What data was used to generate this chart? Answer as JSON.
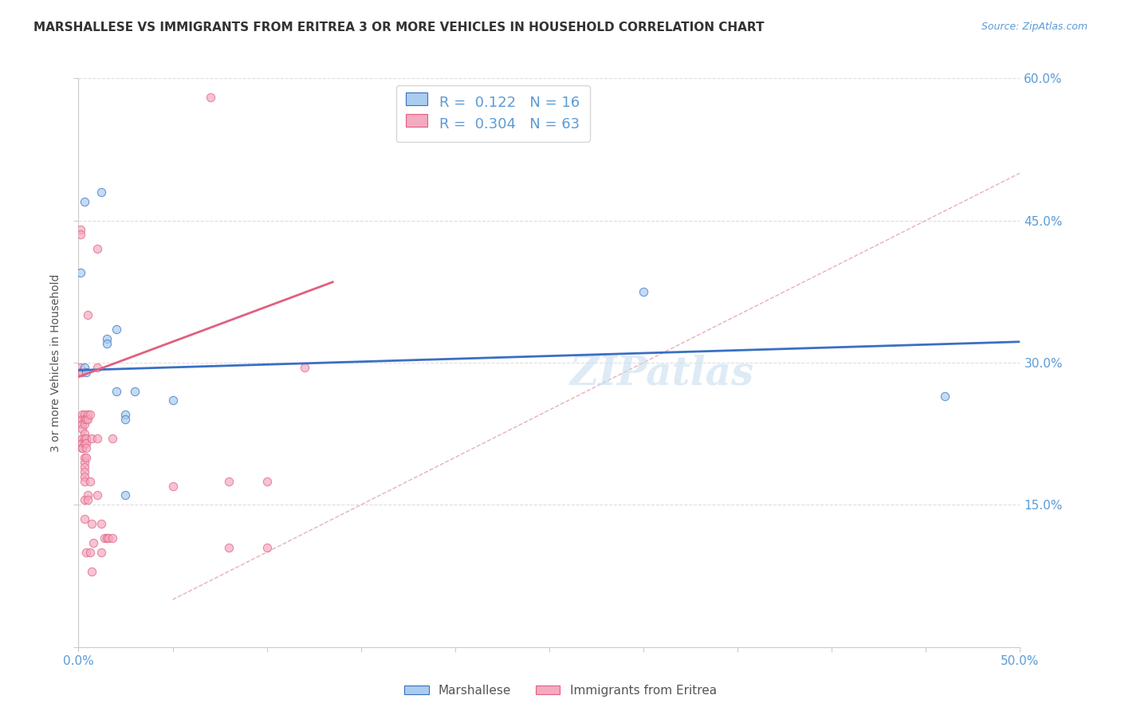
{
  "title": "MARSHALLESE VS IMMIGRANTS FROM ERITREA 3 OR MORE VEHICLES IN HOUSEHOLD CORRELATION CHART",
  "source": "Source: ZipAtlas.com",
  "ylabel": "3 or more Vehicles in Household",
  "xlim": [
    0.0,
    0.5
  ],
  "ylim": [
    0.0,
    0.6
  ],
  "xticks": [
    0.0,
    0.05,
    0.1,
    0.15,
    0.2,
    0.25,
    0.3,
    0.35,
    0.4,
    0.45,
    0.5
  ],
  "xtick_labels": [
    "0.0%",
    "",
    "",
    "",
    "",
    "",
    "",
    "",
    "",
    "",
    "50.0%"
  ],
  "yticks": [
    0.0,
    0.15,
    0.3,
    0.45,
    0.6
  ],
  "ytick_labels_right": [
    "",
    "15.0%",
    "30.0%",
    "45.0%",
    "60.0%"
  ],
  "legend_R_blue": "R =  0.122",
  "legend_N_blue": "N = 16",
  "legend_R_pink": "R =  0.304",
  "legend_N_pink": "N = 63",
  "watermark": "ZIPatlas",
  "blue_scatter": [
    [
      0.001,
      0.395
    ],
    [
      0.003,
      0.47
    ],
    [
      0.003,
      0.295
    ],
    [
      0.004,
      0.29
    ],
    [
      0.012,
      0.48
    ],
    [
      0.015,
      0.325
    ],
    [
      0.015,
      0.32
    ],
    [
      0.02,
      0.335
    ],
    [
      0.02,
      0.27
    ],
    [
      0.025,
      0.245
    ],
    [
      0.025,
      0.24
    ],
    [
      0.025,
      0.16
    ],
    [
      0.03,
      0.27
    ],
    [
      0.05,
      0.26
    ],
    [
      0.3,
      0.375
    ],
    [
      0.46,
      0.265
    ]
  ],
  "pink_scatter": [
    [
      0.001,
      0.44
    ],
    [
      0.001,
      0.435
    ],
    [
      0.001,
      0.295
    ],
    [
      0.001,
      0.29
    ],
    [
      0.002,
      0.29
    ],
    [
      0.002,
      0.245
    ],
    [
      0.002,
      0.24
    ],
    [
      0.002,
      0.235
    ],
    [
      0.002,
      0.23
    ],
    [
      0.002,
      0.22
    ],
    [
      0.002,
      0.215
    ],
    [
      0.002,
      0.21
    ],
    [
      0.002,
      0.21
    ],
    [
      0.003,
      0.245
    ],
    [
      0.003,
      0.24
    ],
    [
      0.003,
      0.235
    ],
    [
      0.003,
      0.225
    ],
    [
      0.003,
      0.22
    ],
    [
      0.003,
      0.215
    ],
    [
      0.003,
      0.2
    ],
    [
      0.003,
      0.195
    ],
    [
      0.003,
      0.19
    ],
    [
      0.003,
      0.185
    ],
    [
      0.003,
      0.18
    ],
    [
      0.003,
      0.175
    ],
    [
      0.003,
      0.155
    ],
    [
      0.003,
      0.135
    ],
    [
      0.004,
      0.24
    ],
    [
      0.004,
      0.22
    ],
    [
      0.004,
      0.215
    ],
    [
      0.004,
      0.21
    ],
    [
      0.004,
      0.2
    ],
    [
      0.004,
      0.1
    ],
    [
      0.005,
      0.35
    ],
    [
      0.005,
      0.245
    ],
    [
      0.005,
      0.24
    ],
    [
      0.005,
      0.16
    ],
    [
      0.005,
      0.155
    ],
    [
      0.006,
      0.245
    ],
    [
      0.006,
      0.175
    ],
    [
      0.006,
      0.1
    ],
    [
      0.007,
      0.22
    ],
    [
      0.007,
      0.13
    ],
    [
      0.007,
      0.08
    ],
    [
      0.008,
      0.11
    ],
    [
      0.01,
      0.42
    ],
    [
      0.01,
      0.295
    ],
    [
      0.01,
      0.22
    ],
    [
      0.01,
      0.16
    ],
    [
      0.012,
      0.13
    ],
    [
      0.012,
      0.1
    ],
    [
      0.014,
      0.115
    ],
    [
      0.015,
      0.115
    ],
    [
      0.016,
      0.115
    ],
    [
      0.018,
      0.22
    ],
    [
      0.018,
      0.115
    ],
    [
      0.05,
      0.17
    ],
    [
      0.07,
      0.58
    ],
    [
      0.08,
      0.175
    ],
    [
      0.08,
      0.105
    ],
    [
      0.1,
      0.175
    ],
    [
      0.1,
      0.105
    ],
    [
      0.12,
      0.295
    ]
  ],
  "blue_line": {
    "x": [
      0.0,
      0.5
    ],
    "y": [
      0.292,
      0.322
    ]
  },
  "pink_line": {
    "x": [
      0.0,
      0.135
    ],
    "y": [
      0.285,
      0.385
    ]
  },
  "diagonal_line": {
    "x": [
      0.05,
      0.6
    ],
    "y": [
      0.05,
      0.6
    ]
  },
  "blue_color": "#aaccee",
  "pink_color": "#f4aac0",
  "blue_line_color": "#3a6fc4",
  "pink_line_color": "#e06080",
  "diag_color": "#e8b0b8",
  "bg_color": "#ffffff",
  "title_color": "#333333",
  "tick_color": "#5b9bd5",
  "marker_size": 55,
  "marker_alpha": 0.7
}
